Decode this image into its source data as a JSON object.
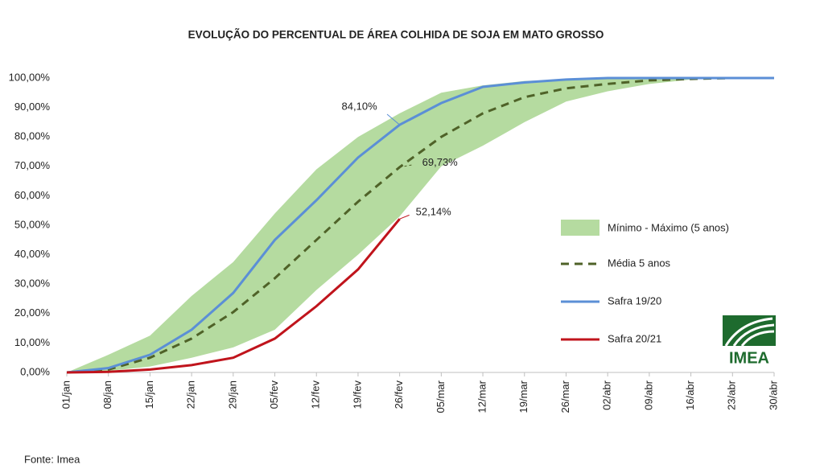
{
  "chart_data": {
    "type": "line",
    "title": "EVOLUÇÃO DO PERCENTUAL DE ÁREA COLHIDA DE SOJA EM MATO GROSSO",
    "source": "Fonte: Imea",
    "logo": "IMEA",
    "categories": [
      "01/jan",
      "08/jan",
      "15/jan",
      "22/jan",
      "29/jan",
      "05/fev",
      "12/fev",
      "19/fev",
      "26/fev",
      "05/mar",
      "12/mar",
      "19/mar",
      "26/mar",
      "02/abr",
      "09/abr",
      "16/abr",
      "23/abr",
      "30/abr"
    ],
    "band": {
      "name": "Mínimo - Máximo (5 anos)",
      "color": "#b5dba0",
      "min": [
        0,
        0.5,
        2,
        5,
        8.5,
        14.5,
        28,
        40,
        53,
        70,
        77,
        85,
        92,
        95.5,
        98,
        99.5,
        100,
        100
      ],
      "max": [
        0,
        6,
        12.5,
        26,
        37.5,
        54,
        69,
        80,
        88,
        95,
        97.5,
        99,
        99.5,
        100,
        100,
        100,
        100,
        100
      ]
    },
    "series": [
      {
        "name": "Média 5 anos",
        "color": "#4f6228",
        "dashed": true,
        "values": [
          0,
          1,
          5,
          11.5,
          20.5,
          32,
          45,
          58,
          69.73,
          80,
          88,
          93.5,
          96.5,
          98,
          99.2,
          99.7,
          100,
          100
        ],
        "value_labels": [
          null,
          null,
          null,
          null,
          null,
          null,
          null,
          null,
          "69,73%",
          null,
          null,
          null,
          null,
          null,
          null,
          null,
          null,
          null
        ]
      },
      {
        "name": "Safra 19/20",
        "color": "#5b8fd6",
        "dashed": false,
        "values": [
          0,
          1.5,
          6,
          14.5,
          27,
          45,
          58.5,
          73,
          84.1,
          91.5,
          97,
          98.5,
          99.5,
          100,
          100,
          100,
          100,
          100
        ],
        "value_labels": [
          null,
          null,
          null,
          null,
          null,
          null,
          null,
          null,
          "84,10%",
          null,
          null,
          null,
          null,
          null,
          null,
          null,
          null,
          null
        ]
      },
      {
        "name": "Safra 20/21",
        "color": "#c0141c",
        "dashed": false,
        "values": [
          0,
          0.2,
          1,
          2.5,
          5,
          11.5,
          22.5,
          35,
          52.14,
          null,
          null,
          null,
          null,
          null,
          null,
          null,
          null,
          null
        ],
        "value_labels": [
          null,
          null,
          null,
          null,
          null,
          null,
          null,
          null,
          "52,14%",
          null,
          null,
          null,
          null,
          null,
          null,
          null,
          null,
          null
        ]
      }
    ],
    "ylim": [
      0,
      100
    ],
    "yticks": [
      {
        "value": 0,
        "label": "0,00%"
      },
      {
        "value": 10,
        "label": "10,00%"
      },
      {
        "value": 20,
        "label": "20,00%"
      },
      {
        "value": 30,
        "label": "30,00%"
      },
      {
        "value": 40,
        "label": "40,00%"
      },
      {
        "value": 50,
        "label": "50,00%"
      },
      {
        "value": 60,
        "label": "60,00%"
      },
      {
        "value": 70,
        "label": "70,00%"
      },
      {
        "value": 80,
        "label": "80,00%"
      },
      {
        "value": 90,
        "label": "90,00%"
      },
      {
        "value": 100,
        "label": "100,00%"
      }
    ]
  }
}
